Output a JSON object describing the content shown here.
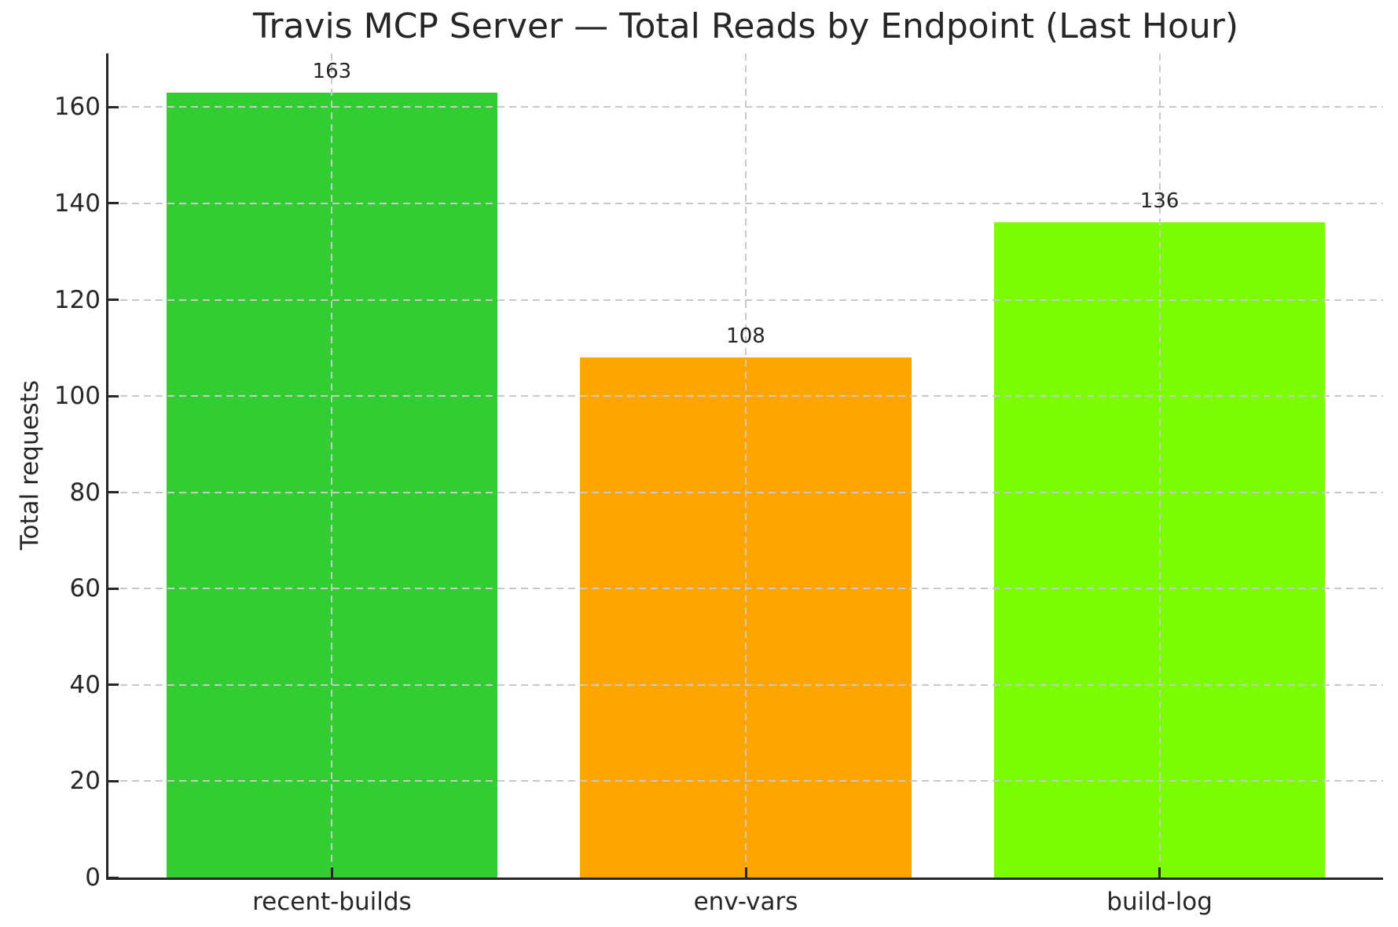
{
  "chart_data": {
    "type": "bar",
    "title": "Travis MCP Server — Total Reads by Endpoint (Last Hour)",
    "xlabel": "",
    "ylabel": "Total requests",
    "categories": [
      "recent-builds",
      "env-vars",
      "build-log"
    ],
    "values": [
      163,
      108,
      136
    ],
    "value_labels": [
      "163",
      "108",
      "136"
    ],
    "bar_colors": [
      "#32CD32",
      "#FFA500",
      "#7CFC00"
    ],
    "yticks": [
      0,
      20,
      40,
      60,
      80,
      100,
      120,
      140,
      160
    ],
    "ylim": [
      0,
      171.15
    ],
    "grid": {
      "horizontal": true,
      "vertical": true,
      "style": "dashed",
      "above_bars": true
    },
    "legend": "none",
    "bar_width_fraction": 0.8,
    "colors": {
      "background": "#ffffff",
      "text": "#262626",
      "spine": "#262626",
      "grid": "#c9c9c9"
    }
  }
}
